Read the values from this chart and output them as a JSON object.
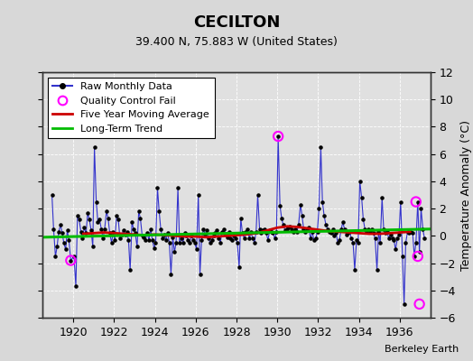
{
  "title": "CECILTON",
  "subtitle": "39.400 N, 75.883 W (United States)",
  "ylabel": "Temperature Anomaly (°C)",
  "credit": "Berkeley Earth",
  "background_color": "#d8d8d8",
  "plot_bg_color": "#e0e0e0",
  "ylim": [
    -6,
    12
  ],
  "yticks": [
    -6,
    -4,
    -2,
    0,
    2,
    4,
    6,
    8,
    10,
    12
  ],
  "xlim": [
    1918.5,
    1937.5
  ],
  "xticks": [
    1920,
    1922,
    1924,
    1926,
    1928,
    1930,
    1932,
    1934,
    1936
  ],
  "raw_x": [
    1918.96,
    1919.04,
    1919.13,
    1919.21,
    1919.29,
    1919.38,
    1919.46,
    1919.54,
    1919.63,
    1919.71,
    1919.79,
    1919.88,
    1920.04,
    1920.13,
    1920.21,
    1920.29,
    1920.38,
    1920.46,
    1920.54,
    1920.63,
    1920.71,
    1920.79,
    1920.88,
    1920.96,
    1921.04,
    1921.13,
    1921.21,
    1921.29,
    1921.38,
    1921.46,
    1921.54,
    1921.63,
    1921.71,
    1921.79,
    1921.88,
    1921.96,
    1922.04,
    1922.13,
    1922.21,
    1922.29,
    1922.38,
    1922.46,
    1922.54,
    1922.63,
    1922.71,
    1922.79,
    1922.88,
    1922.96,
    1923.04,
    1923.13,
    1923.21,
    1923.29,
    1923.38,
    1923.46,
    1923.54,
    1923.63,
    1923.71,
    1923.79,
    1923.88,
    1923.96,
    1924.04,
    1924.13,
    1924.21,
    1924.29,
    1924.38,
    1924.46,
    1924.54,
    1924.63,
    1924.71,
    1924.79,
    1924.88,
    1924.96,
    1925.04,
    1925.13,
    1925.21,
    1925.29,
    1925.38,
    1925.46,
    1925.54,
    1925.63,
    1925.71,
    1925.79,
    1925.88,
    1925.96,
    1926.04,
    1926.13,
    1926.21,
    1926.29,
    1926.38,
    1926.46,
    1926.54,
    1926.63,
    1926.71,
    1926.79,
    1926.88,
    1926.96,
    1927.04,
    1927.13,
    1927.21,
    1927.29,
    1927.38,
    1927.46,
    1927.54,
    1927.63,
    1927.71,
    1927.79,
    1927.88,
    1927.96,
    1928.04,
    1928.13,
    1928.21,
    1928.29,
    1928.38,
    1928.46,
    1928.54,
    1928.63,
    1928.71,
    1928.79,
    1928.88,
    1928.96,
    1929.04,
    1929.13,
    1929.21,
    1929.29,
    1929.38,
    1929.46,
    1929.54,
    1929.63,
    1929.71,
    1929.79,
    1929.88,
    1929.96,
    1930.04,
    1930.13,
    1930.21,
    1930.29,
    1930.38,
    1930.46,
    1930.54,
    1930.63,
    1930.71,
    1930.79,
    1930.88,
    1930.96,
    1931.04,
    1931.13,
    1931.21,
    1931.29,
    1931.38,
    1931.46,
    1931.54,
    1931.63,
    1931.71,
    1931.79,
    1931.88,
    1931.96,
    1932.04,
    1932.13,
    1932.21,
    1932.29,
    1932.38,
    1932.46,
    1932.54,
    1932.63,
    1932.71,
    1932.79,
    1932.88,
    1932.96,
    1933.04,
    1933.13,
    1933.21,
    1933.29,
    1933.38,
    1933.46,
    1933.54,
    1933.63,
    1933.71,
    1933.79,
    1933.88,
    1933.96,
    1934.04,
    1934.13,
    1934.21,
    1934.29,
    1934.38,
    1934.46,
    1934.54,
    1934.63,
    1934.71,
    1934.79,
    1934.88,
    1934.96,
    1935.04,
    1935.13,
    1935.21,
    1935.29,
    1935.38,
    1935.46,
    1935.54,
    1935.63,
    1935.71,
    1935.79,
    1935.88,
    1935.96,
    1936.04,
    1936.13,
    1936.21,
    1936.29,
    1936.38,
    1936.46,
    1936.54,
    1936.63,
    1936.71,
    1936.79,
    1936.88,
    1936.96,
    1937.04,
    1937.13,
    1937.21
  ],
  "raw_y": [
    3.0,
    0.5,
    -1.5,
    -0.8,
    0.3,
    0.8,
    0.2,
    -0.5,
    -1.0,
    0.4,
    -0.3,
    -1.8,
    -1.5,
    -3.7,
    1.5,
    1.2,
    0.3,
    -0.2,
    0.6,
    0.2,
    1.7,
    1.2,
    0.4,
    -0.8,
    6.5,
    2.5,
    1.0,
    1.2,
    0.5,
    -0.2,
    0.5,
    1.8,
    1.3,
    0.2,
    -0.5,
    0.3,
    -0.3,
    1.5,
    1.2,
    -0.2,
    0.1,
    0.4,
    0.1,
    0.3,
    -0.3,
    -2.5,
    1.0,
    0.5,
    0.2,
    -0.8,
    1.8,
    1.3,
    0.0,
    -0.1,
    -0.3,
    0.2,
    -0.3,
    0.5,
    -0.3,
    -0.9,
    -0.5,
    3.5,
    1.8,
    0.5,
    -0.2,
    0.1,
    -0.3,
    0.2,
    -0.5,
    -2.8,
    -0.1,
    -1.2,
    -0.5,
    3.5,
    -0.5,
    -0.2,
    -0.5,
    0.2,
    0.0,
    -0.3,
    -0.5,
    0.0,
    -0.3,
    -0.5,
    -1.0,
    3.0,
    -2.8,
    -0.3,
    0.5,
    0.1,
    0.4,
    -0.2,
    -0.5,
    -0.3,
    0.0,
    0.2,
    0.4,
    -0.2,
    -0.5,
    0.3,
    0.5,
    0.1,
    -0.1,
    0.3,
    -0.2,
    -0.3,
    0.0,
    -0.2,
    -0.5,
    -2.3,
    1.3,
    0.2,
    -0.2,
    0.3,
    0.5,
    -0.2,
    0.3,
    -0.2,
    -0.5,
    0.3,
    3.0,
    0.5,
    0.2,
    0.4,
    0.5,
    0.2,
    -0.3,
    0.4,
    0.3,
    0.2,
    -0.2,
    0.3,
    7.3,
    2.2,
    1.3,
    0.8,
    0.4,
    0.5,
    0.6,
    0.7,
    0.5,
    0.3,
    0.5,
    0.3,
    0.8,
    2.3,
    1.5,
    0.5,
    0.3,
    0.4,
    0.6,
    -0.2,
    0.3,
    -0.3,
    -0.2,
    0.3,
    2.0,
    6.5,
    2.5,
    1.5,
    0.8,
    0.5,
    0.3,
    0.2,
    0.5,
    0.0,
    0.2,
    -0.5,
    -0.3,
    0.5,
    1.0,
    0.5,
    0.1,
    0.2,
    0.3,
    -0.2,
    -0.5,
    -2.5,
    -0.3,
    -0.5,
    4.0,
    2.8,
    1.2,
    0.5,
    0.3,
    0.5,
    0.3,
    0.5,
    0.2,
    -0.2,
    -2.5,
    0.3,
    -0.5,
    2.8,
    0.5,
    0.2,
    0.3,
    -0.2,
    0.1,
    -0.2,
    -0.3,
    -1.0,
    -0.2,
    0.1,
    2.5,
    -1.5,
    -5.0,
    -0.5,
    0.3,
    0.2,
    0.3,
    0.2,
    -1.5,
    -0.5,
    2.5,
    -1.2,
    2.0,
    0.5,
    -0.2
  ],
  "qc_fail_x": [
    1919.88,
    1930.04,
    1936.79,
    1936.88,
    1936.96
  ],
  "qc_fail_y": [
    -1.8,
    7.3,
    2.5,
    -1.5,
    -5.0
  ],
  "ma_x": [
    1920.5,
    1921.0,
    1921.5,
    1922.0,
    1922.5,
    1923.0,
    1923.5,
    1924.0,
    1924.5,
    1925.0,
    1925.5,
    1926.0,
    1926.5,
    1927.0,
    1927.5,
    1928.0,
    1928.5,
    1929.0,
    1929.5,
    1930.0,
    1930.5,
    1931.0,
    1931.5,
    1932.0,
    1932.5,
    1933.0,
    1933.5,
    1934.0,
    1934.5,
    1935.0,
    1935.5,
    1936.0,
    1936.5
  ],
  "ma_y": [
    0.15,
    0.2,
    0.25,
    0.2,
    0.15,
    0.1,
    0.05,
    0.1,
    0.05,
    0.0,
    -0.05,
    -0.05,
    -0.1,
    -0.05,
    0.0,
    0.05,
    0.1,
    0.2,
    0.4,
    0.6,
    0.7,
    0.65,
    0.55,
    0.45,
    0.35,
    0.3,
    0.25,
    0.2,
    0.15,
    0.15,
    0.2,
    0.25,
    0.3
  ],
  "trend_x": [
    1918.5,
    1937.5
  ],
  "trend_y": [
    -0.1,
    0.5
  ],
  "line_color": "#3333cc",
  "dot_color": "#000000",
  "qc_color": "#ff00ff",
  "ma_color": "#cc0000",
  "trend_color": "#00bb00",
  "title_fontsize": 13,
  "subtitle_fontsize": 9,
  "tick_fontsize": 9,
  "legend_fontsize": 8,
  "credit_fontsize": 8
}
